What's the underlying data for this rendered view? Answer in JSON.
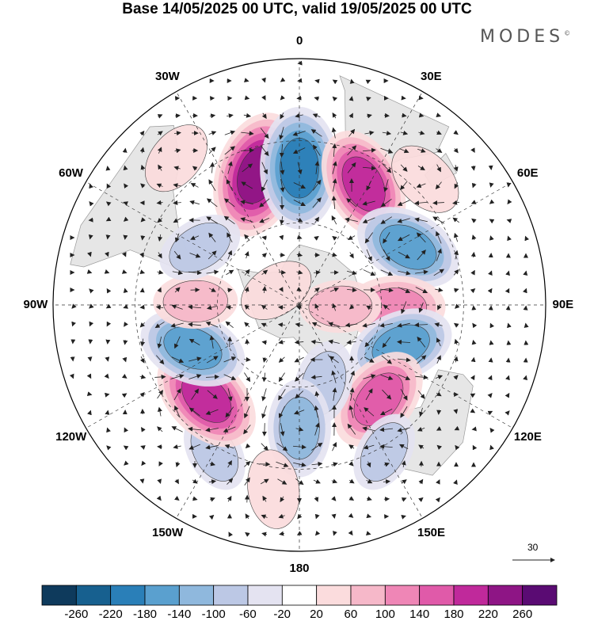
{
  "title": "Base 14/05/2025 00 UTC, valid 19/05/2025 00 UTC",
  "brand": "MODES",
  "brand_mark": "©",
  "longitude_labels": [
    {
      "text": "0",
      "lon": 0
    },
    {
      "text": "30E",
      "lon": 30
    },
    {
      "text": "60E",
      "lon": 60
    },
    {
      "text": "90E",
      "lon": 90
    },
    {
      "text": "120E",
      "lon": 120
    },
    {
      "text": "150E",
      "lon": 150
    },
    {
      "text": "180",
      "lon": 180
    },
    {
      "text": "150W",
      "lon": -150
    },
    {
      "text": "120W",
      "lon": -120
    },
    {
      "text": "90W",
      "lon": -90
    },
    {
      "text": "60W",
      "lon": -60
    },
    {
      "text": "30W",
      "lon": -30
    }
  ],
  "vector_reference": "30",
  "colorbar": {
    "colors": [
      "#0e3a5c",
      "#17608f",
      "#2a7fb8",
      "#5aa0cf",
      "#8fb8dd",
      "#bcc8e5",
      "#e4e3f1",
      "#ffffff",
      "#fbdcdd",
      "#f6b8c9",
      "#ef86b6",
      "#e05aa9",
      "#c0299b",
      "#8e1585",
      "#5a0b73"
    ],
    "tick_labels": [
      "-260",
      "-220",
      "-180",
      "-140",
      "-100",
      "-60",
      "-20",
      "20",
      "60",
      "100",
      "140",
      "180",
      "220",
      "260"
    ]
  },
  "anomaly_centers": [
    {
      "lon": -18,
      "lat": -40,
      "value": 230
    },
    {
      "lon": 0,
      "lat": -40,
      "value": -210
    },
    {
      "lon": 28,
      "lat": -40,
      "value": 180
    },
    {
      "lon": 62,
      "lat": -45,
      "value": -160
    },
    {
      "lon": 92,
      "lat": -55,
      "value": 130
    },
    {
      "lon": 112,
      "lat": -50,
      "value": -150
    },
    {
      "lon": 140,
      "lat": -45,
      "value": 160
    },
    {
      "lon": 163,
      "lat": -60,
      "value": -80
    },
    {
      "lon": 150,
      "lat": -28,
      "value": -60
    },
    {
      "lon": 180,
      "lat": -45,
      "value": -120
    },
    {
      "lon": -172,
      "lat": -22,
      "value": 50
    },
    {
      "lon": -150,
      "lat": -28,
      "value": -60
    },
    {
      "lon": -135,
      "lat": -42,
      "value": 190
    },
    {
      "lon": -112,
      "lat": -48,
      "value": -160
    },
    {
      "lon": -88,
      "lat": -52,
      "value": 70
    },
    {
      "lon": -60,
      "lat": -48,
      "value": -80
    },
    {
      "lon": 92,
      "lat": -75,
      "value": 60
    },
    {
      "lon": -58,
      "lat": -80,
      "value": 40
    },
    {
      "lon": 45,
      "lat": -25,
      "value": 50
    },
    {
      "lon": -40,
      "lat": -20,
      "value": 40
    }
  ]
}
